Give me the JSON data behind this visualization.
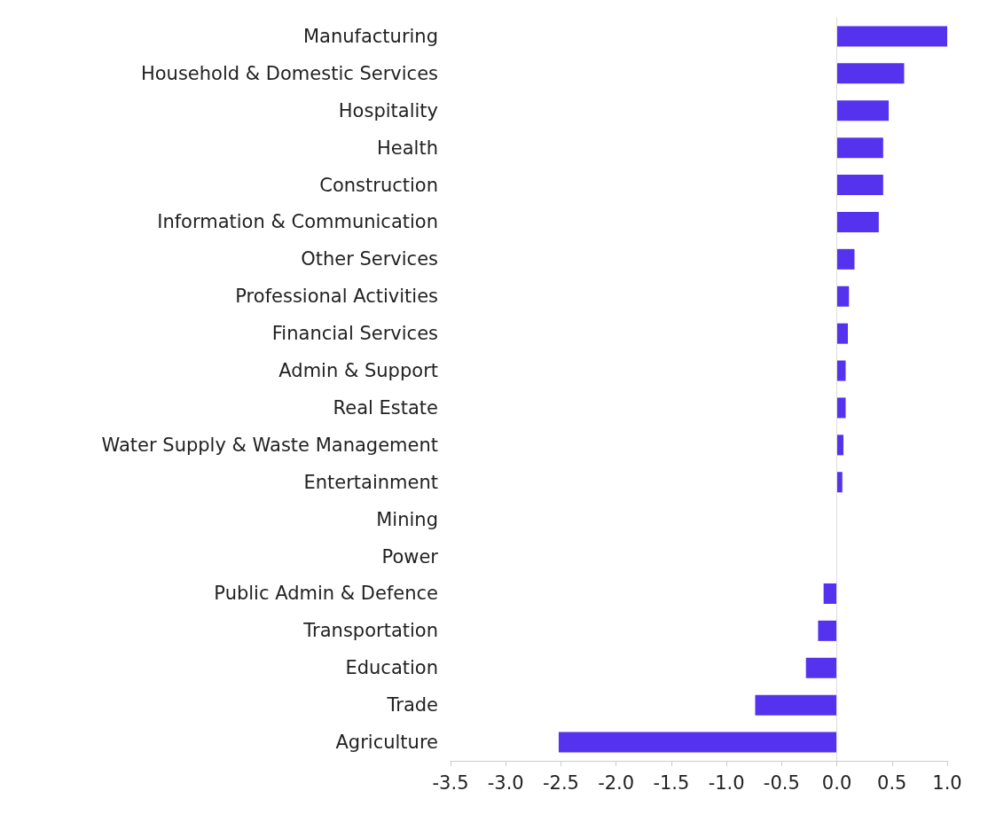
{
  "chart_data": {
    "type": "bar",
    "orientation": "horizontal",
    "categories": [
      "Manufacturing",
      "Household & Domestic Services",
      "Hospitality",
      "Health",
      "Construction",
      "Information & Communication",
      "Other Services",
      "Professional Activities",
      "Financial Services",
      "Admin & Support",
      "Real Estate",
      "Water Supply & Waste Management",
      "Entertainment",
      "Mining",
      "Power",
      "Public Admin & Defence",
      "Transportation",
      "Education",
      "Trade",
      "Agriculture"
    ],
    "values": [
      1.0,
      0.61,
      0.47,
      0.42,
      0.42,
      0.38,
      0.16,
      0.11,
      0.1,
      0.08,
      0.08,
      0.06,
      0.05,
      0,
      0,
      -0.12,
      -0.17,
      -0.28,
      -0.74,
      -2.52
    ],
    "color": "#5533ee",
    "xlim": [
      -3.5,
      1.0
    ],
    "xticks": [
      {
        "value": -3.5,
        "label": "-3.5"
      },
      {
        "value": -3.0,
        "label": "-3.0"
      },
      {
        "value": -2.5,
        "label": "-2.5"
      },
      {
        "value": -2.0,
        "label": "-2.0"
      },
      {
        "value": -1.5,
        "label": "-1.5"
      },
      {
        "value": -1.0,
        "label": "-1.0"
      },
      {
        "value": -0.5,
        "label": "-0.5"
      },
      {
        "value": 0,
        "label": "0.0"
      },
      {
        "value": 0.5,
        "label": "0.5"
      },
      {
        "value": 1.0,
        "label": "1.0"
      }
    ],
    "ref_lines": [
      {
        "axis": "x",
        "value": 0,
        "color": "#dddddd"
      }
    ],
    "grid": false
  }
}
